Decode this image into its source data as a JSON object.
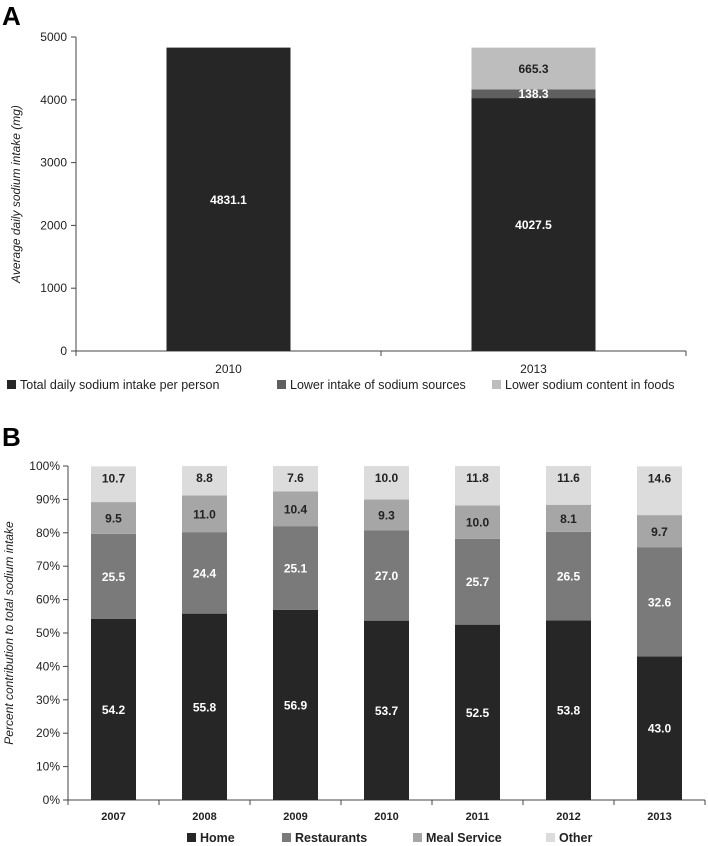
{
  "chart_data": [
    {
      "panel": "A",
      "type": "bar",
      "stacked": true,
      "categories": [
        "2010",
        "2013"
      ],
      "ylabel": "Average daily sodium intake (mg)",
      "ylim": [
        0,
        5000
      ],
      "yticks": [
        0,
        1000,
        2000,
        3000,
        4000,
        5000
      ],
      "series": [
        {
          "name": "Total daily sodium intake per person",
          "color": "#262626",
          "values": [
            4831.1,
            4027.5
          ],
          "labels": [
            "4831.1",
            "4027.5"
          ]
        },
        {
          "name": "Lower intake of sodium sources",
          "color": "#5f5f5f",
          "values": [
            0,
            138.3
          ],
          "labels": [
            "",
            "138.3"
          ]
        },
        {
          "name": "Lower sodium content in foods",
          "color": "#bdbdbd",
          "values": [
            0,
            665.3
          ],
          "labels": [
            "",
            "665.3"
          ]
        }
      ],
      "legend_position": "bottom"
    },
    {
      "panel": "B",
      "type": "bar",
      "stacked": true,
      "categories": [
        "2007",
        "2008",
        "2009",
        "2010",
        "2011",
        "2012",
        "2013"
      ],
      "ylabel": "Percent contribution to total sodium intake",
      "ylim": [
        0,
        100
      ],
      "yticks": [
        "0%",
        "10%",
        "20%",
        "30%",
        "40%",
        "50%",
        "60%",
        "70%",
        "80%",
        "90%",
        "100%"
      ],
      "series": [
        {
          "name": "Home",
          "color": "#262626",
          "values": [
            54.2,
            55.8,
            56.9,
            53.7,
            52.5,
            53.8,
            43.0
          ],
          "labels": [
            "54.2",
            "55.8",
            "56.9",
            "53.7",
            "52.5",
            "53.8",
            "43.0"
          ]
        },
        {
          "name": "Restaurants",
          "color": "#7a7a7a",
          "values": [
            25.5,
            24.4,
            25.1,
            27.0,
            25.7,
            26.5,
            32.6
          ],
          "labels": [
            "25.5",
            "24.4",
            "25.1",
            "27.0",
            "25.7",
            "26.5",
            "32.6"
          ]
        },
        {
          "name": "Meal Service",
          "color": "#a6a6a6",
          "values": [
            9.5,
            11.0,
            10.4,
            9.3,
            10.0,
            8.1,
            9.7
          ],
          "labels": [
            "9.5",
            "11.0",
            "10.4",
            "9.3",
            "10.0",
            "8.1",
            "9.7"
          ]
        },
        {
          "name": "Other",
          "color": "#dcdcdc",
          "values": [
            10.7,
            8.8,
            7.6,
            10.0,
            11.8,
            11.6,
            14.6
          ],
          "labels": [
            "10.7",
            "8.8",
            "7.6",
            "10.0",
            "11.8",
            "11.6",
            "14.6"
          ]
        }
      ],
      "legend_position": "bottom"
    }
  ]
}
